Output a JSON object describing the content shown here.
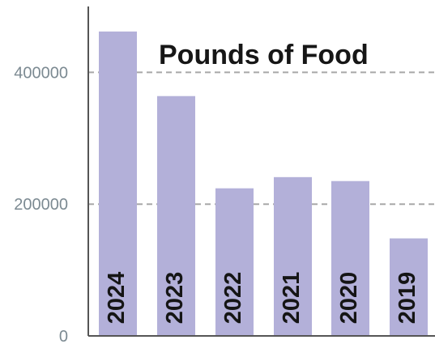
{
  "chart_data": {
    "type": "bar",
    "title": "Pounds of Food",
    "categories": [
      "2024",
      "2023",
      "2022",
      "2021",
      "2020",
      "2019"
    ],
    "values": [
      462000,
      364000,
      224000,
      241000,
      235000,
      148000
    ],
    "ylim": [
      0,
      500000
    ],
    "yticks": [
      0,
      200000,
      400000
    ],
    "grid": true,
    "colors": {
      "bar": "#b3b0d9",
      "axis": "#555555",
      "grid": "#a8a8a8"
    }
  }
}
